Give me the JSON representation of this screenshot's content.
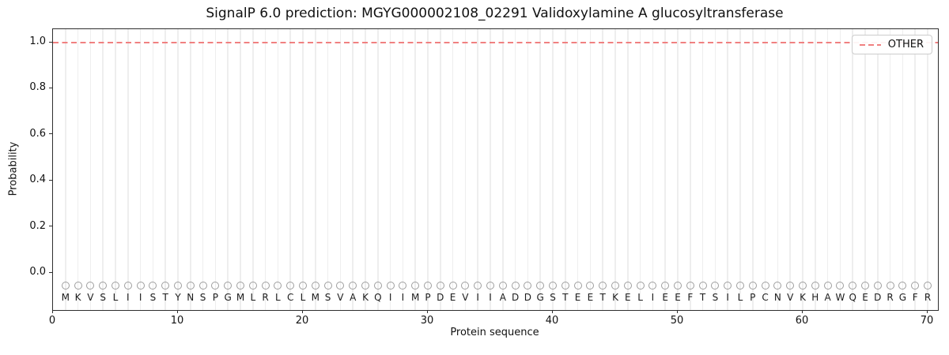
{
  "title": "SignalP 6.0 prediction: MGYG000002108_02291 Validoxylamine A glucosyltransferase",
  "axes": {
    "x_label": "Protein sequence",
    "y_label": "Probability",
    "x_ticks": [
      0,
      10,
      20,
      30,
      40,
      50,
      60,
      70
    ],
    "y_ticks": [
      "0.0",
      "0.2",
      "0.4",
      "0.6",
      "0.8",
      "1.0"
    ]
  },
  "legend": {
    "items": [
      {
        "label": "OTHER",
        "color": "#f08080",
        "style": "dashed"
      }
    ]
  },
  "sequence": "MKVSLIISTYNSPGMLRLCLMSVAKQIIMPDEVIIADDGSTEETKELIEEFTSILPCNVKHAWQEDRGFR",
  "colors": {
    "other_line": "#f08080",
    "grid": "#eeeeee",
    "marker_outline": "#9e9e9e",
    "letter": "#1c1c1c",
    "spine": "#2e2e2e"
  },
  "chart_data": {
    "type": "line",
    "title": "SignalP 6.0 prediction: MGYG000002108_02291 Validoxylamine A glucosyltransferase",
    "xlabel": "Protein sequence",
    "ylabel": "Probability",
    "xlim": [
      0,
      70.8
    ],
    "ylim": [
      -0.16,
      1.06
    ],
    "x_ticks": [
      0,
      10,
      20,
      30,
      40,
      50,
      60,
      70
    ],
    "y_ticks": [
      0.0,
      0.2,
      0.4,
      0.6,
      0.8,
      1.0
    ],
    "grid": "vertical gridline at every residue position",
    "legend_position": "upper right",
    "x": [
      1,
      2,
      3,
      4,
      5,
      6,
      7,
      8,
      9,
      10,
      11,
      12,
      13,
      14,
      15,
      16,
      17,
      18,
      19,
      20,
      21,
      22,
      23,
      24,
      25,
      26,
      27,
      28,
      29,
      30,
      31,
      32,
      33,
      34,
      35,
      36,
      37,
      38,
      39,
      40,
      41,
      42,
      43,
      44,
      45,
      46,
      47,
      48,
      49,
      50,
      51,
      52,
      53,
      54,
      55,
      56,
      57,
      58,
      59,
      60,
      61,
      62,
      63,
      64,
      65,
      66,
      67,
      68,
      69,
      70
    ],
    "series": [
      {
        "name": "OTHER",
        "linestyle": "dashed",
        "color": "#f08080",
        "values": [
          1.0,
          1.0,
          1.0,
          1.0,
          1.0,
          1.0,
          1.0,
          1.0,
          1.0,
          1.0,
          1.0,
          1.0,
          1.0,
          1.0,
          1.0,
          1.0,
          1.0,
          1.0,
          1.0,
          1.0,
          1.0,
          1.0,
          1.0,
          1.0,
          1.0,
          1.0,
          1.0,
          1.0,
          1.0,
          1.0,
          1.0,
          1.0,
          1.0,
          1.0,
          1.0,
          1.0,
          1.0,
          1.0,
          1.0,
          1.0,
          1.0,
          1.0,
          1.0,
          1.0,
          1.0,
          1.0,
          1.0,
          1.0,
          1.0,
          1.0,
          1.0,
          1.0,
          1.0,
          1.0,
          1.0,
          1.0,
          1.0,
          1.0,
          1.0,
          1.0,
          1.0,
          1.0,
          1.0,
          1.0,
          1.0,
          1.0,
          1.0,
          1.0,
          1.0,
          1.0
        ]
      }
    ],
    "sequence": "MKVSLIISTYNSPGMLRLCLMSVAKQIIMPDEVIIADDGSTEETKELIEEFTSILPCNVKHAWQEDRGFR",
    "residue_markers": {
      "marker": "circle",
      "outline_color": "#9e9e9e",
      "y": -0.05
    }
  }
}
